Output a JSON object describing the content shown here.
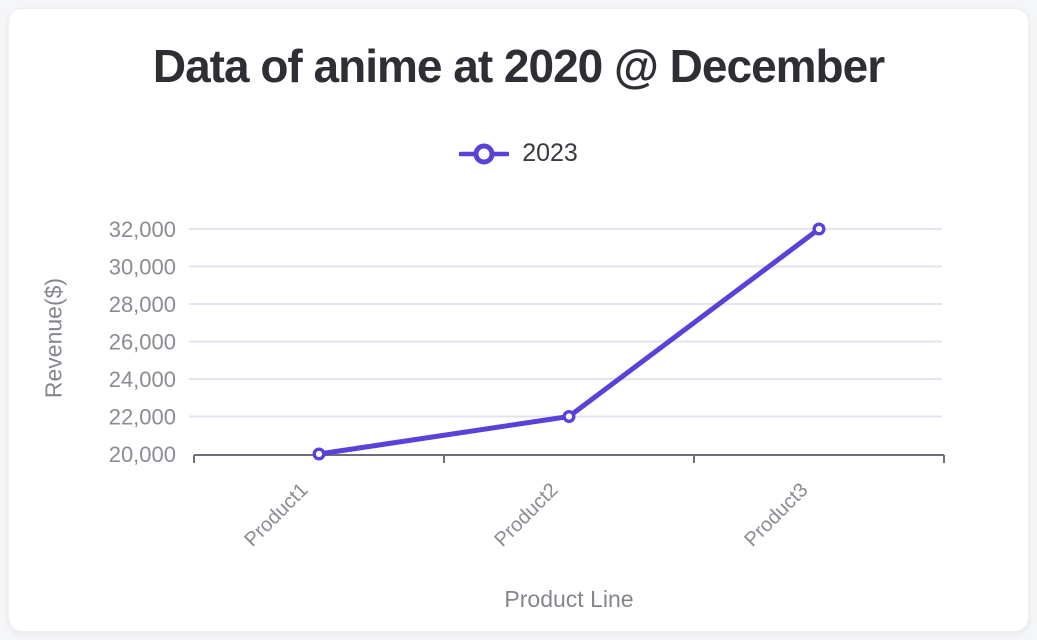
{
  "colors": {
    "page_bg": "#f5f6f8",
    "card_bg": "#ffffff",
    "title_text": "#2e2e35",
    "legend_text": "#3a3a40",
    "series": "#5a41d8",
    "grid": "#e2e5f0",
    "axis": "#6e6e78",
    "tick_label": "#8b8b93",
    "axis_title": "#85858d",
    "marker_fill": "#ffffff"
  },
  "chart_data": {
    "type": "line",
    "title": "Data of anime at 2020 @ December",
    "categories": [
      "Product1",
      "Product2",
      "Product3"
    ],
    "series": [
      {
        "name": "2023",
        "values": [
          20000,
          22000,
          32000
        ]
      }
    ],
    "xlabel": "Product Line",
    "ylabel": "Revenue($)",
    "ylim": [
      20000,
      32000
    ],
    "ytick_step": 2000,
    "ytick_labels": [
      "20,000",
      "22,000",
      "24,000",
      "26,000",
      "28,000",
      "30,000",
      "32,000"
    ],
    "grid": true,
    "legend_position": "top",
    "marker_style": "hollow-circle",
    "x_label_rotation": -45
  }
}
